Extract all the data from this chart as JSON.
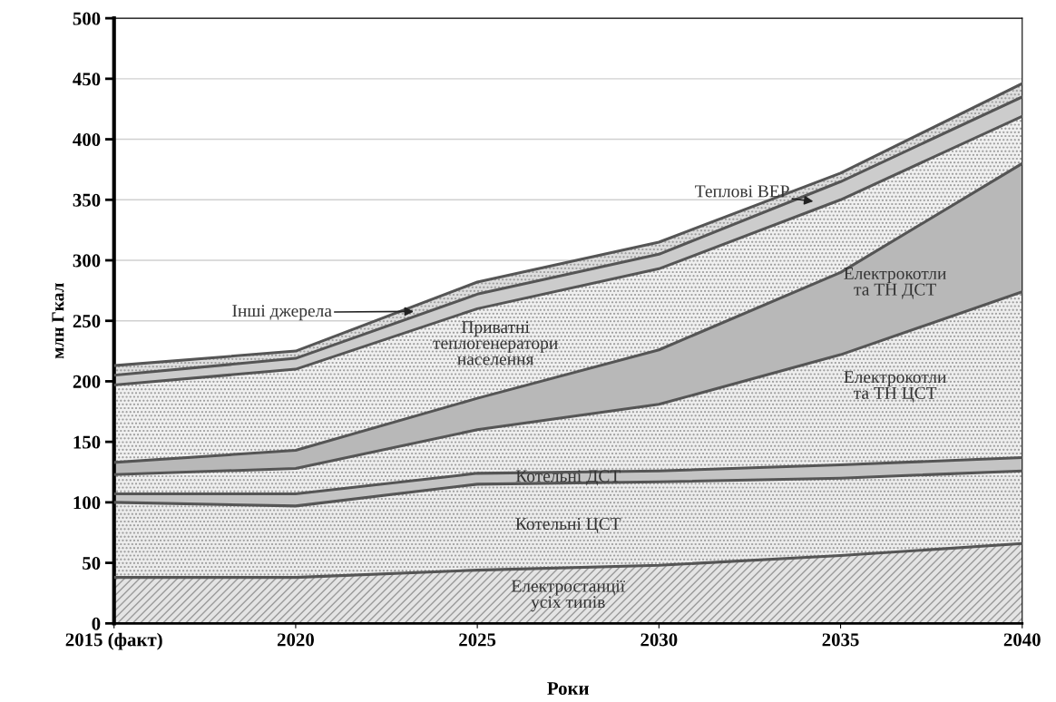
{
  "chart_data": {
    "type": "area",
    "stacked": true,
    "xlabel": "Роки",
    "ylabel": "млн Гкал",
    "categories": [
      "2015 (факт)",
      "2020",
      "2025",
      "2030",
      "2035",
      "2040"
    ],
    "ylim": [
      0,
      500
    ],
    "yticks": [
      0,
      50,
      100,
      150,
      200,
      250,
      300,
      350,
      400,
      450,
      500
    ],
    "grid": "y",
    "legend": false,
    "series": [
      {
        "name": "Електростанції\nусіх типів",
        "color": "#e4e4e4",
        "values": [
          38,
          38,
          44,
          48,
          56,
          66
        ]
      },
      {
        "name": "Котельні ЦСТ",
        "color": "#ececec",
        "values": [
          62,
          59,
          71,
          69,
          64,
          60
        ]
      },
      {
        "name": "Котельні ДСТ",
        "color": "#c4c4c4",
        "values": [
          7,
          10,
          9,
          9,
          11,
          11
        ]
      },
      {
        "name": "Електрокотли\nта ТН ЦСТ",
        "color": "#eeeeee",
        "values": [
          16,
          21,
          36,
          55,
          91,
          137
        ]
      },
      {
        "name": "Електрокотли\nта ТН ДСТ",
        "color": "#b8b8b8",
        "values": [
          10,
          15,
          26,
          45,
          68,
          106
        ]
      },
      {
        "name": "Приватні\nтеплогенератори\nнаселення",
        "color": "#f0f0f0",
        "values": [
          64,
          67,
          74,
          67,
          60,
          39
        ]
      },
      {
        "name": "Теплові ВЕР",
        "color": "#cccccc",
        "values": [
          8,
          9,
          12,
          12,
          15,
          16
        ]
      },
      {
        "name": "Інші джерела",
        "color": "#dddddd",
        "values": [
          8,
          6,
          10,
          10,
          7,
          11
        ]
      }
    ]
  }
}
